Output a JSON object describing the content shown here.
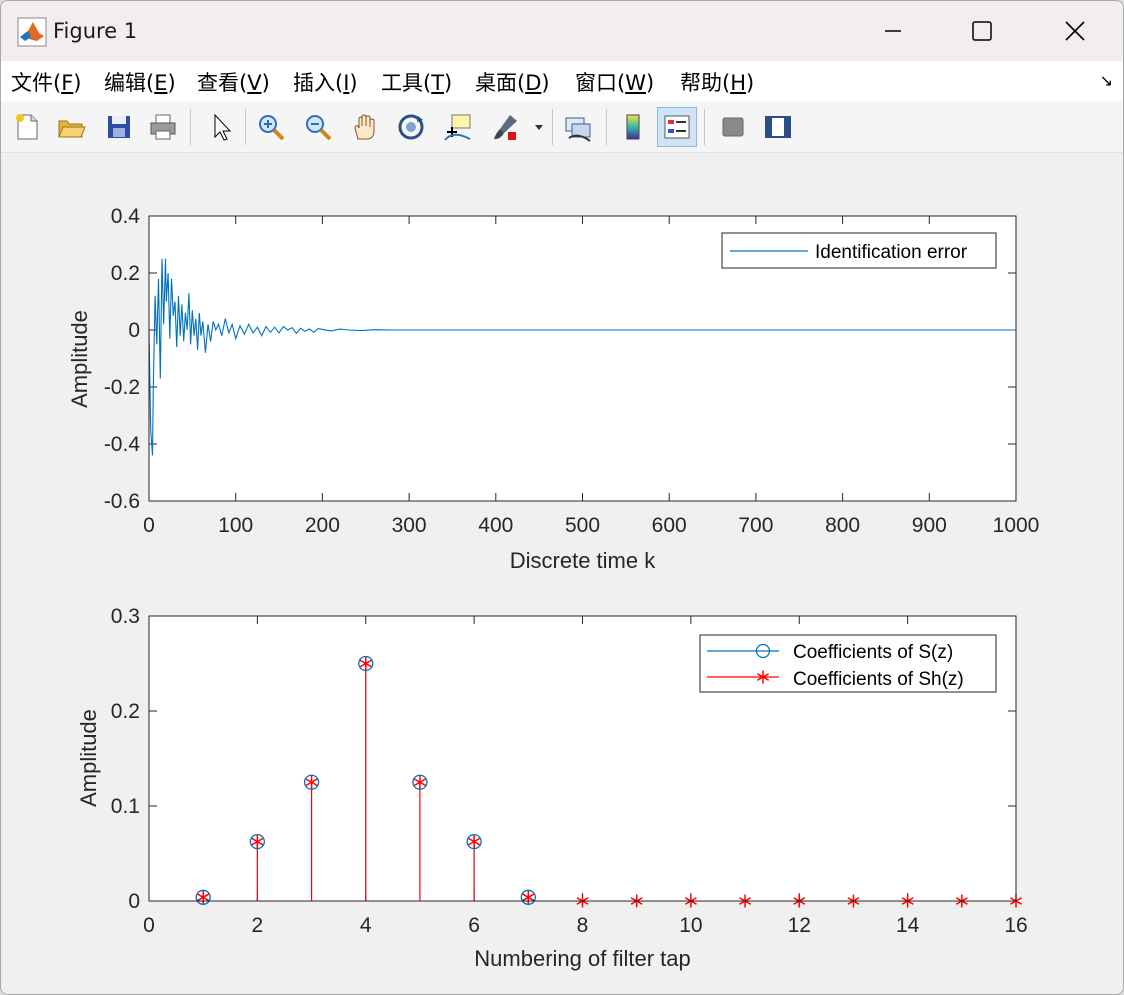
{
  "window": {
    "title": "Figure 1",
    "controls": [
      "minimize",
      "maximize",
      "close"
    ]
  },
  "menu": {
    "items": [
      {
        "label": "文件(",
        "key": "F",
        "end": ")"
      },
      {
        "label": "编辑(",
        "key": "E",
        "end": ")"
      },
      {
        "label": "查看(",
        "key": "V",
        "end": ")"
      },
      {
        "label": "插入(",
        "key": "I",
        "end": ")"
      },
      {
        "label": "工具(",
        "key": "T",
        "end": ")"
      },
      {
        "label": "桌面(",
        "key": "D",
        "end": ")"
      },
      {
        "label": "窗口(",
        "key": "W",
        "end": ")"
      },
      {
        "label": "帮助(",
        "key": "H",
        "end": ")"
      }
    ]
  },
  "toolbar": {
    "icons": [
      "new-figure-icon",
      "open-file-icon",
      "save-icon",
      "print-icon",
      "select-arrow-icon",
      "zoom-in-icon",
      "zoom-out-icon",
      "pan-hand-icon",
      "rotate-3d-icon",
      "data-cursor-icon",
      "brush-icon",
      "link-plot-icon",
      "colorbar-icon",
      "legend-icon",
      "hide-plot-tools-icon",
      "show-plot-tools-icon"
    ]
  },
  "colors": {
    "series_blue": "#0072bd",
    "series_red": "#ff0000"
  },
  "chart_data": [
    {
      "type": "line",
      "xlabel": "Discrete time k",
      "ylabel": "Amplitude",
      "xlim": [
        0,
        1000
      ],
      "ylim": [
        -0.6,
        0.4
      ],
      "xticks": [
        0,
        100,
        200,
        300,
        400,
        500,
        600,
        700,
        800,
        900,
        1000
      ],
      "yticks": [
        -0.6,
        -0.4,
        -0.2,
        0,
        0.2,
        0.4
      ],
      "xtick_labels": [
        "0",
        "100",
        "200",
        "300",
        "400",
        "500",
        "600",
        "700",
        "800",
        "900",
        "1000"
      ],
      "ytick_labels": [
        "-0.6",
        "-0.4",
        "-0.2",
        "0",
        "0.2",
        "0.4"
      ],
      "legend": {
        "placement": "top-right",
        "entries": [
          "Identification error"
        ]
      },
      "series": [
        {
          "name": "Identification error",
          "color": "#0072bd",
          "x": [
            0,
            2,
            4,
            5,
            7,
            9,
            11,
            13,
            15,
            17,
            19,
            20,
            22,
            24,
            26,
            28,
            30,
            32,
            34,
            36,
            38,
            40,
            42,
            44,
            46,
            48,
            50,
            52,
            54,
            56,
            58,
            60,
            62,
            65,
            68,
            71,
            74,
            77,
            80,
            84,
            88,
            92,
            96,
            100,
            105,
            110,
            115,
            120,
            125,
            130,
            135,
            140,
            145,
            150,
            155,
            160,
            165,
            170,
            175,
            180,
            185,
            190,
            195,
            200,
            210,
            220,
            230,
            245,
            260,
            280,
            300,
            350,
            400,
            500,
            600,
            700,
            800,
            900,
            1000
          ],
          "y": [
            0,
            -0.35,
            -0.44,
            -0.2,
            0.12,
            -0.05,
            0.18,
            -0.17,
            0.25,
            0.02,
            0.25,
            0.1,
            0.2,
            -0.03,
            0.18,
            0.05,
            0.1,
            -0.06,
            0.12,
            -0.02,
            0.09,
            -0.04,
            0.06,
            0.0,
            0.13,
            -0.05,
            0.07,
            -0.02,
            0.04,
            -0.07,
            0.06,
            -0.02,
            0.03,
            -0.08,
            0.02,
            -0.04,
            0.03,
            0.0,
            0.02,
            -0.02,
            0.04,
            -0.01,
            0.02,
            -0.03,
            0.015,
            -0.015,
            0.02,
            -0.01,
            0.01,
            -0.02,
            0.012,
            -0.008,
            0.01,
            -0.01,
            0.012,
            0.0,
            0.008,
            -0.012,
            0.006,
            -0.005,
            0.004,
            -0.008,
            0.005,
            0.002,
            -0.003,
            0.003,
            0.0,
            -0.002,
            0.001,
            0.0,
            0.0,
            0.0,
            0.0,
            0.0,
            0.0,
            0.0,
            0.0,
            0.0,
            0.0
          ]
        }
      ]
    },
    {
      "type": "stem",
      "xlabel": "Numbering of filter tap",
      "ylabel": "Amplitude",
      "xlim": [
        0,
        16
      ],
      "ylim": [
        0,
        0.3
      ],
      "xticks": [
        0,
        2,
        4,
        6,
        8,
        10,
        12,
        14,
        16
      ],
      "yticks": [
        0,
        0.1,
        0.2,
        0.3
      ],
      "xtick_labels": [
        "0",
        "2",
        "4",
        "6",
        "8",
        "10",
        "12",
        "14",
        "16"
      ],
      "ytick_labels": [
        "0",
        "0.1",
        "0.2",
        "0.3"
      ],
      "legend": {
        "placement": "top-right",
        "entries": [
          "Coefficients of S(z)",
          "Coefficients of Sh(z)"
        ]
      },
      "series": [
        {
          "name": "Coefficients of S(z)",
          "marker": "circle",
          "color": "#0072bd",
          "x": [
            1,
            2,
            3,
            4,
            5,
            6,
            7
          ],
          "y": [
            0.0039,
            0.0625,
            0.125,
            0.25,
            0.125,
            0.0625,
            0.0039
          ]
        },
        {
          "name": "Coefficients of Sh(z)",
          "marker": "asterisk",
          "color": "#ff0000",
          "x": [
            1,
            2,
            3,
            4,
            5,
            6,
            7,
            8,
            9,
            10,
            11,
            12,
            13,
            14,
            15,
            16
          ],
          "y": [
            0.0039,
            0.0625,
            0.125,
            0.25,
            0.125,
            0.0625,
            0.0039,
            0,
            0,
            0,
            0,
            0,
            0,
            0,
            0,
            0
          ]
        }
      ]
    }
  ]
}
